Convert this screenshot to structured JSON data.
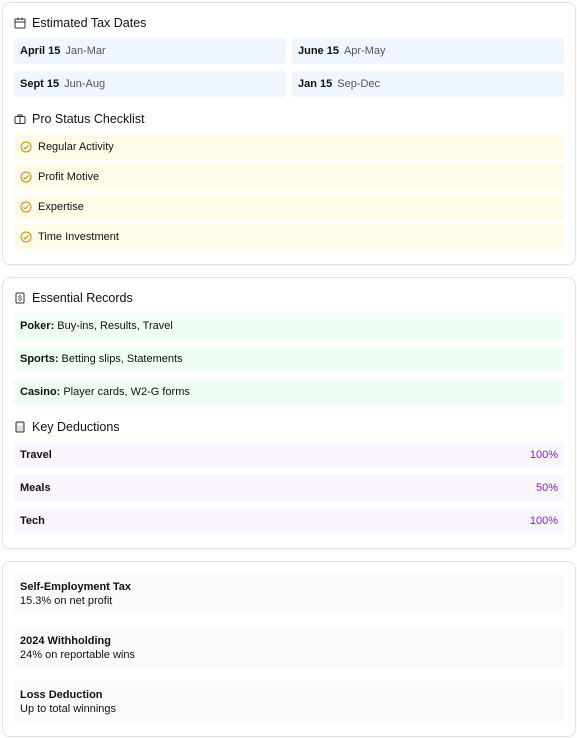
{
  "tax_dates": {
    "title": "Estimated Tax Dates",
    "items": [
      {
        "date": "April 15",
        "period": "Jan-Mar"
      },
      {
        "date": "June 15",
        "period": "Apr-May"
      },
      {
        "date": "Sept 15",
        "period": "Jun-Aug"
      },
      {
        "date": "Jan 15",
        "period": "Sep-Dec"
      }
    ]
  },
  "checklist": {
    "title": "Pro Status Checklist",
    "items": [
      "Regular Activity",
      "Profit Motive",
      "Expertise",
      "Time Investment"
    ]
  },
  "records": {
    "title": "Essential Records",
    "items": [
      {
        "label": "Poker:",
        "text": "Buy-ins, Results, Travel"
      },
      {
        "label": "Sports:",
        "text": "Betting slips, Statements"
      },
      {
        "label": "Casino:",
        "text": "Player cards, W2-G forms"
      }
    ]
  },
  "deductions": {
    "title": "Key Deductions",
    "items": [
      {
        "label": "Travel",
        "value": "100%"
      },
      {
        "label": "Meals",
        "value": "50%"
      },
      {
        "label": "Tech",
        "value": "100%"
      }
    ]
  },
  "notes": [
    {
      "title": "Self-Employment Tax",
      "text": "15.3% on net profit"
    },
    {
      "title": "2024 Withholding",
      "text": "24% on reportable wins"
    },
    {
      "title": "Loss Deduction",
      "text": "Up to total winnings"
    }
  ]
}
